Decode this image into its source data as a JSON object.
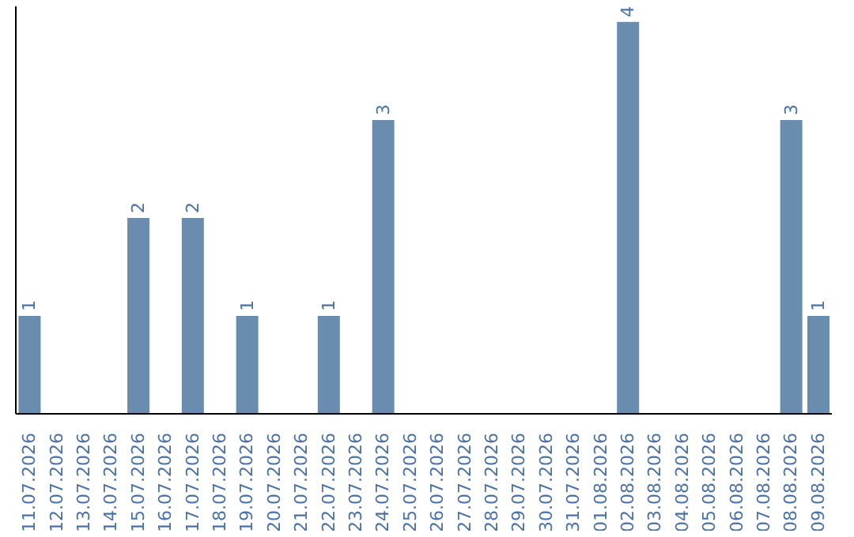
{
  "chart_data": {
    "type": "bar",
    "categories": [
      "11.07.2026",
      "12.07.2026",
      "13.07.2026",
      "14.07.2026",
      "15.07.2026",
      "16.07.2026",
      "17.07.2026",
      "18.07.2026",
      "19.07.2026",
      "20.07.2026",
      "21.07.2026",
      "22.07.2026",
      "23.07.2026",
      "24.07.2026",
      "25.07.2026",
      "26.07.2026",
      "27.07.2026",
      "28.07.2026",
      "29.07.2026",
      "30.07.2026",
      "31.07.2026",
      "01.08.2026",
      "02.08.2026",
      "03.08.2026",
      "04.08.2026",
      "05.08.2026",
      "06.08.2026",
      "07.08.2026",
      "08.08.2026",
      "09.08.2026"
    ],
    "values": [
      1,
      0,
      0,
      0,
      2,
      0,
      2,
      0,
      1,
      0,
      0,
      1,
      0,
      3,
      0,
      0,
      0,
      0,
      0,
      0,
      0,
      0,
      4,
      0,
      0,
      0,
      0,
      0,
      3,
      1
    ],
    "value_labels": [
      "1",
      null,
      null,
      null,
      "2",
      null,
      "2",
      null,
      "1",
      null,
      null,
      "1",
      null,
      "3",
      null,
      null,
      null,
      null,
      null,
      null,
      null,
      null,
      "4",
      null,
      null,
      null,
      null,
      null,
      "3",
      "1"
    ],
    "color": "#6a8caf",
    "tick_labels": "x"
  }
}
